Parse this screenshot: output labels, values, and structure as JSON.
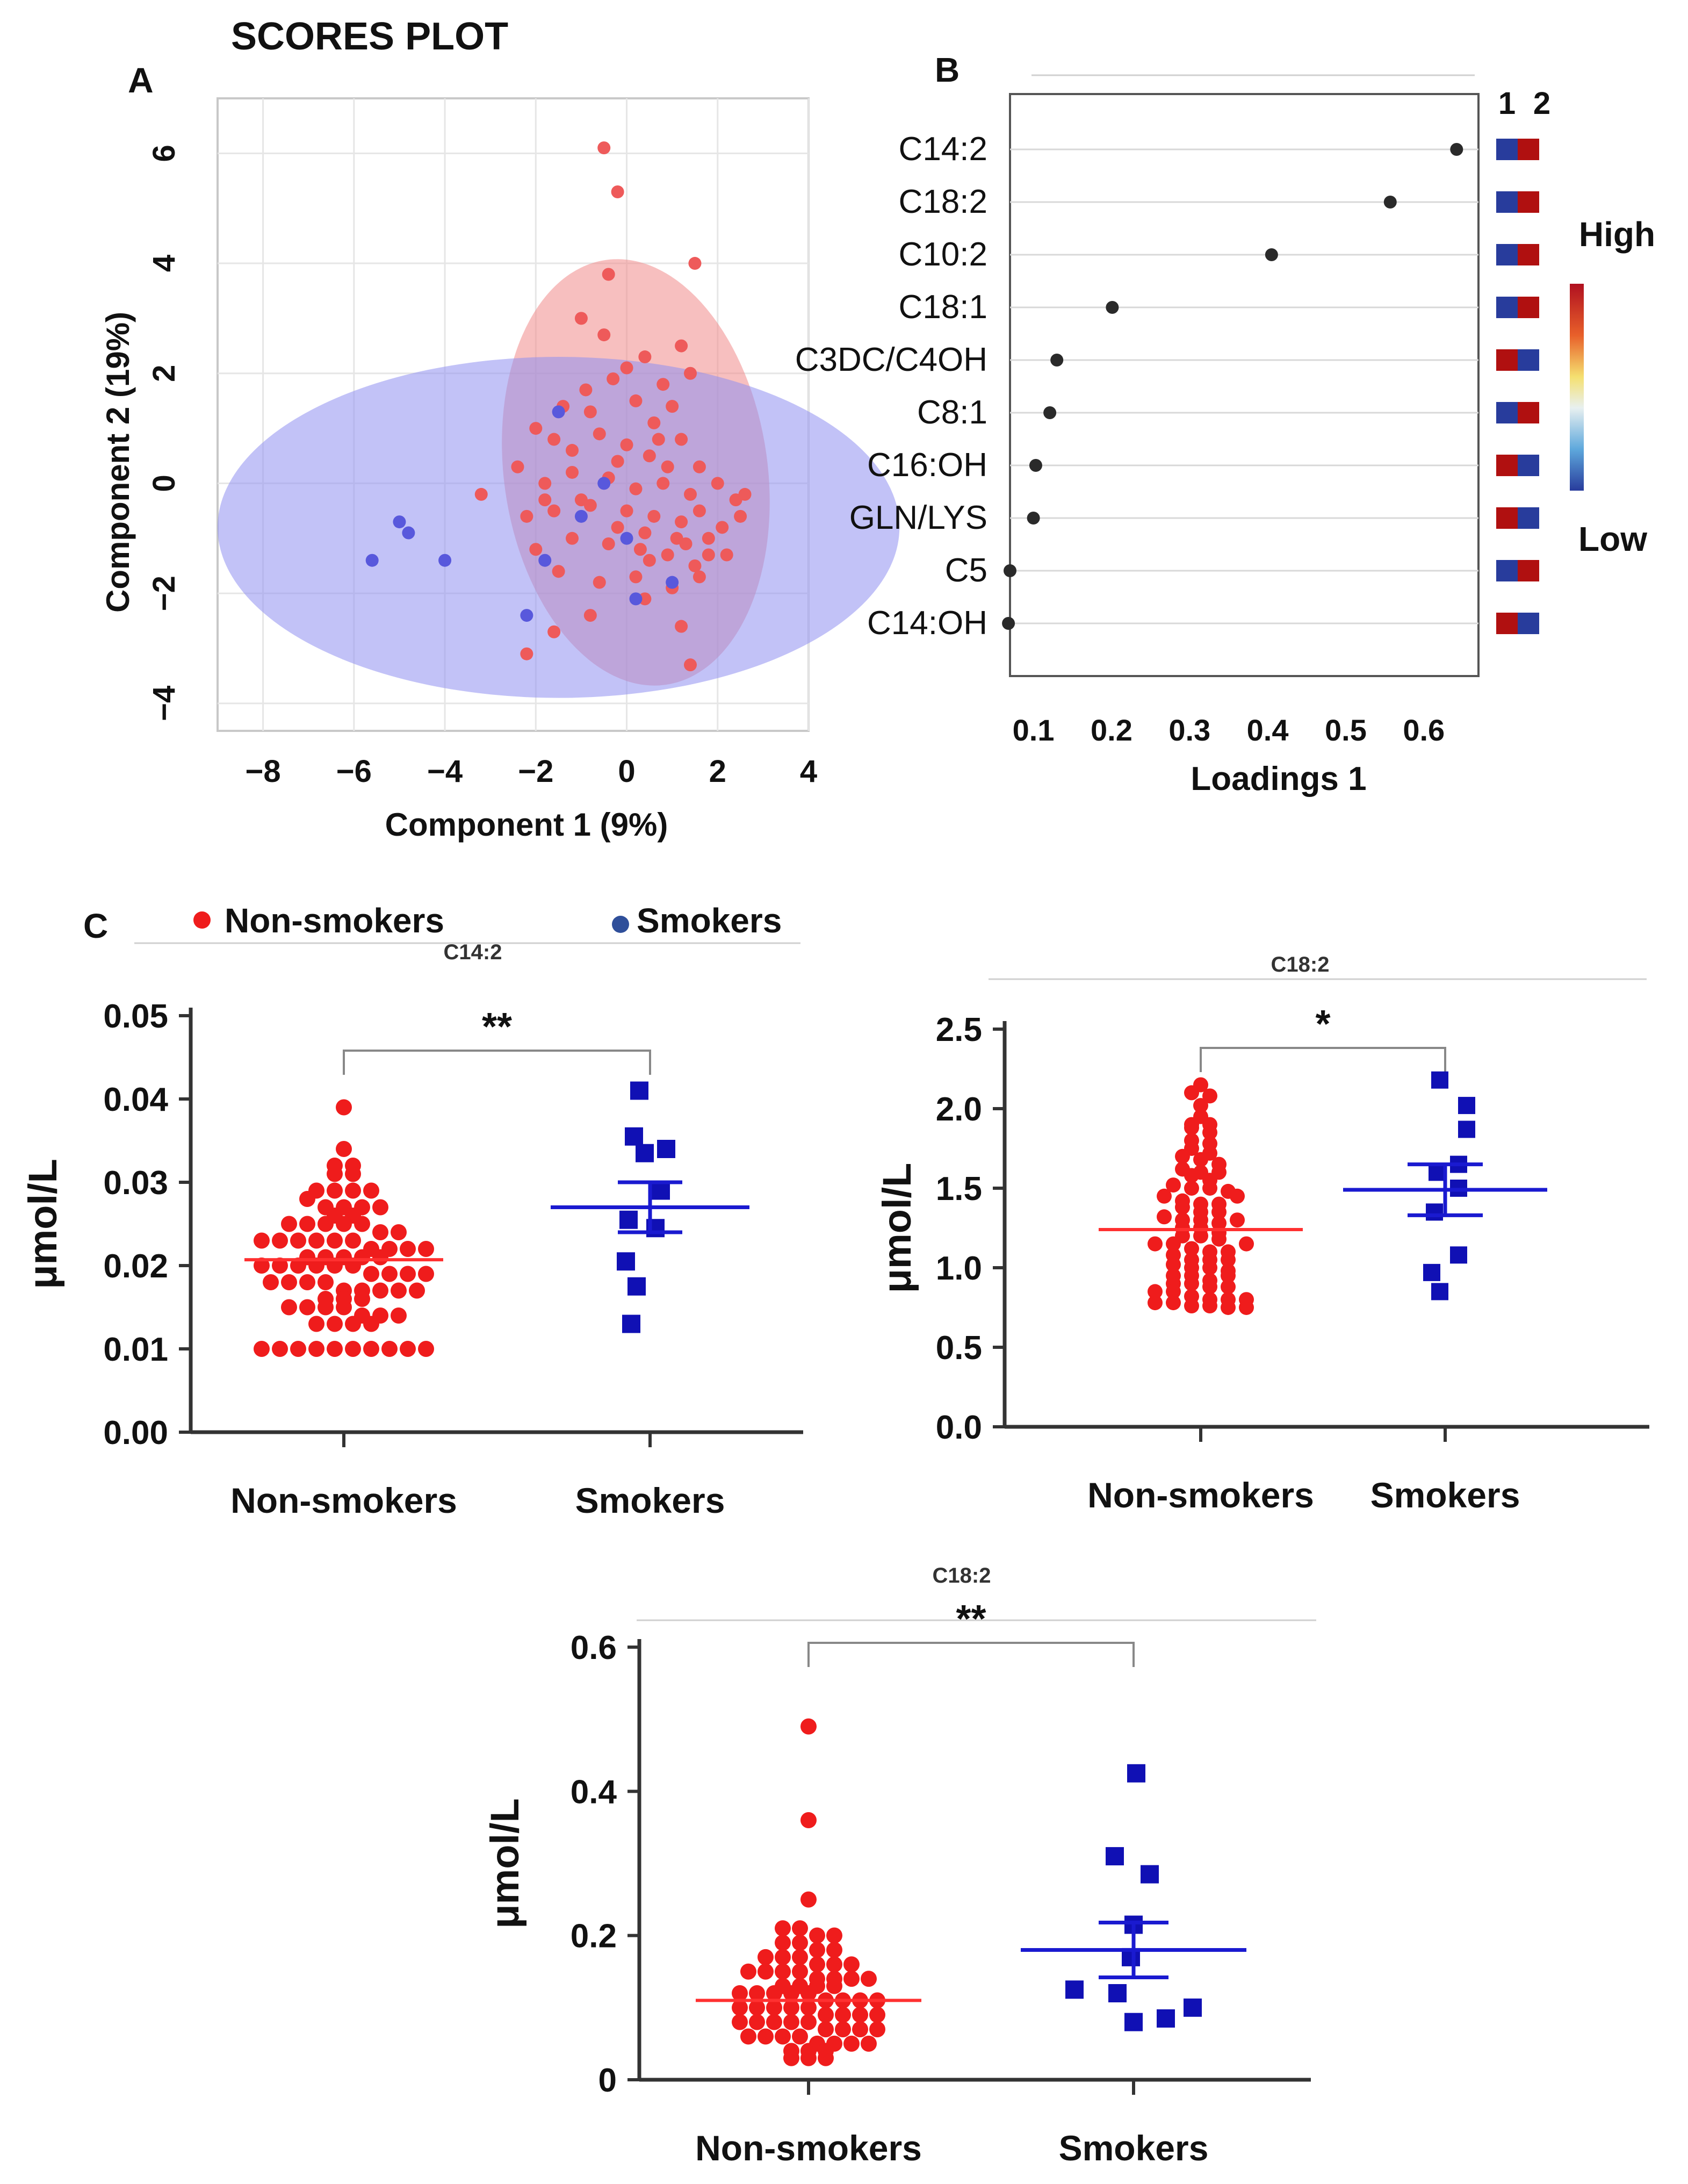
{
  "panel_labels": {
    "a": "A",
    "b": "B",
    "c": "C"
  },
  "colors": {
    "nonsmoker": "#ef1c1c",
    "smoker": "#1010b4",
    "nonsmoker_light": "#ee5a5a",
    "smoker_light": "#5858dc",
    "ellipse_red": "#f08a8a",
    "ellipse_blue": "#9090f0",
    "mean_red": "#ff3030",
    "mean_blue": "#1a1ad0"
  },
  "legend": {
    "nonsmoker": "Non-smokers",
    "smoker": "Smokers"
  },
  "chart_data": [
    {
      "id": "scores",
      "type": "scatter",
      "title": "SCORES PLOT",
      "xlabel": "Component 1 (9%)",
      "ylabel": "Component 2 (19%)",
      "xlim": [
        -9,
        4
      ],
      "ylim": [
        -4.5,
        7
      ],
      "xticks": [
        -8,
        -6,
        -4,
        -2,
        0,
        2,
        4
      ],
      "yticks": [
        -4,
        -2,
        0,
        2,
        4,
        6
      ],
      "xtick_labels": [
        "−8",
        "−6",
        "−4",
        "−2",
        "0",
        "2",
        "4"
      ],
      "ytick_labels": [
        "−4",
        "−2",
        "0",
        "2",
        "4",
        "6"
      ],
      "grid": true,
      "ellipses": [
        {
          "group": "Non-smokers",
          "cx": 0.2,
          "cy": 0.2,
          "rx": 2.9,
          "ry": 3.9,
          "angle": -8
        },
        {
          "group": "Smokers",
          "cx": -1.5,
          "cy": -0.8,
          "rx": 7.5,
          "ry": 3.1,
          "angle": 0
        }
      ],
      "series": [
        {
          "name": "Non-smokers",
          "points": [
            [
              -0.5,
              6.1
            ],
            [
              -0.2,
              5.3
            ],
            [
              1.5,
              4.0
            ],
            [
              -0.4,
              3.8
            ],
            [
              -1.0,
              3.0
            ],
            [
              -0.5,
              2.7
            ],
            [
              1.2,
              2.5
            ],
            [
              0.0,
              2.1
            ],
            [
              0.4,
              2.3
            ],
            [
              -0.3,
              1.9
            ],
            [
              0.8,
              1.8
            ],
            [
              1.4,
              2.0
            ],
            [
              -1.4,
              1.4
            ],
            [
              -0.8,
              1.3
            ],
            [
              0.2,
              1.5
            ],
            [
              0.6,
              1.1
            ],
            [
              1.0,
              1.4
            ],
            [
              -2.0,
              1.0
            ],
            [
              -1.6,
              0.8
            ],
            [
              -1.2,
              0.6
            ],
            [
              -0.6,
              0.9
            ],
            [
              0.0,
              0.7
            ],
            [
              0.5,
              0.5
            ],
            [
              1.2,
              0.8
            ],
            [
              1.6,
              0.3
            ],
            [
              2.0,
              0.0
            ],
            [
              2.4,
              -0.3
            ],
            [
              2.5,
              -0.6
            ],
            [
              -2.4,
              0.3
            ],
            [
              -1.8,
              0.0
            ],
            [
              -1.2,
              0.2
            ],
            [
              -0.4,
              0.1
            ],
            [
              0.2,
              -0.1
            ],
            [
              0.8,
              0.0
            ],
            [
              1.4,
              -0.2
            ],
            [
              -3.2,
              -0.2
            ],
            [
              -2.2,
              -0.6
            ],
            [
              -1.6,
              -0.5
            ],
            [
              -0.8,
              -0.4
            ],
            [
              0.0,
              -0.5
            ],
            [
              0.6,
              -0.6
            ],
            [
              1.2,
              -0.7
            ],
            [
              1.8,
              -1.0
            ],
            [
              2.2,
              -1.3
            ],
            [
              -2.0,
              -1.2
            ],
            [
              -1.2,
              -1.0
            ],
            [
              -0.4,
              -1.1
            ],
            [
              0.3,
              -1.2
            ],
            [
              0.9,
              -1.3
            ],
            [
              1.5,
              -1.5
            ],
            [
              -1.5,
              -1.6
            ],
            [
              -0.6,
              -1.8
            ],
            [
              0.2,
              -1.7
            ],
            [
              1.0,
              -1.9
            ],
            [
              1.6,
              -1.7
            ],
            [
              -2.2,
              -3.1
            ],
            [
              -1.6,
              -2.7
            ],
            [
              -0.8,
              -2.4
            ],
            [
              0.4,
              -2.1
            ],
            [
              1.2,
              -2.6
            ],
            [
              1.4,
              -3.3
            ],
            [
              -0.2,
              0.4
            ],
            [
              0.9,
              0.3
            ],
            [
              1.6,
              -0.5
            ],
            [
              2.1,
              -0.8
            ],
            [
              -1.0,
              -0.3
            ],
            [
              -0.2,
              -0.8
            ],
            [
              0.4,
              -0.9
            ],
            [
              1.1,
              -1.0
            ],
            [
              1.8,
              -1.3
            ],
            [
              2.6,
              -0.2
            ],
            [
              -1.8,
              -0.3
            ],
            [
              0.5,
              -1.4
            ],
            [
              1.3,
              -1.1
            ],
            [
              -0.9,
              1.7
            ],
            [
              0.7,
              0.8
            ]
          ]
        },
        {
          "name": "Smokers",
          "points": [
            [
              -5.6,
              -1.4
            ],
            [
              -5.0,
              -0.7
            ],
            [
              -4.8,
              -0.9
            ],
            [
              -4.0,
              -1.4
            ],
            [
              -2.2,
              -2.4
            ],
            [
              -1.8,
              -1.4
            ],
            [
              -1.5,
              1.3
            ],
            [
              -1.0,
              -0.6
            ],
            [
              -0.5,
              0.0
            ],
            [
              0.2,
              -2.1
            ],
            [
              1.0,
              -1.8
            ],
            [
              0.0,
              -1.0
            ]
          ]
        }
      ]
    },
    {
      "id": "loadings",
      "type": "scatter",
      "xlabel": "Loadings 1",
      "xlim": [
        0.07,
        0.67
      ],
      "xticks": [
        0.1,
        0.2,
        0.3,
        0.4,
        0.5,
        0.6
      ],
      "xtick_labels": [
        "0.1",
        "0.2",
        "0.3",
        "0.4",
        "0.5",
        "0.6"
      ],
      "categories": [
        "C14:2",
        "C18:2",
        "C10:2",
        "C18:1",
        "C3DC/C4OH",
        "C8:1",
        "C16:OH",
        "GLN/LYS",
        "C5",
        "C14:OH"
      ],
      "values": [
        0.642,
        0.557,
        0.405,
        0.201,
        0.13,
        0.121,
        0.103,
        0.1,
        0.07,
        0.068
      ],
      "heatmap_columns": [
        "1",
        "2"
      ],
      "heatmap": [
        [
          "Low",
          "High"
        ],
        [
          "Low",
          "High"
        ],
        [
          "Low",
          "High"
        ],
        [
          "Low",
          "High"
        ],
        [
          "High",
          "Low"
        ],
        [
          "Low",
          "High"
        ],
        [
          "High",
          "Low"
        ],
        [
          "High",
          "Low"
        ],
        [
          "Low",
          "High"
        ],
        [
          "High",
          "Low"
        ]
      ],
      "colorbar": {
        "high_label": "High",
        "low_label": "Low",
        "high_color": "#b01010",
        "low_color": "#283c9c"
      }
    },
    {
      "id": "c14_2",
      "type": "scatter",
      "title": "C14:2",
      "ylabel": "μmol/L",
      "ylim": [
        0,
        0.05
      ],
      "yticks": [
        0.0,
        0.01,
        0.02,
        0.03,
        0.04,
        0.05
      ],
      "ytick_labels": [
        "0.00",
        "0.01",
        "0.02",
        "0.03",
        "0.04",
        "0.05"
      ],
      "categories": [
        "Non-smokers",
        "Smokers"
      ],
      "significance": "**",
      "series": [
        {
          "name": "Non-smokers",
          "mean": 0.0207,
          "sem": 0.0,
          "values": [
            0.039,
            0.034,
            0.032,
            0.032,
            0.031,
            0.031,
            0.029,
            0.029,
            0.029,
            0.029,
            0.028,
            0.027,
            0.027,
            0.027,
            0.027,
            0.026,
            0.026,
            0.025,
            0.025,
            0.025,
            0.025,
            0.025,
            0.024,
            0.024,
            0.023,
            0.023,
            0.023,
            0.023,
            0.023,
            0.023,
            0.022,
            0.022,
            0.022,
            0.022,
            0.021,
            0.021,
            0.021,
            0.021,
            0.021,
            0.02,
            0.02,
            0.02,
            0.02,
            0.02,
            0.02,
            0.019,
            0.019,
            0.019,
            0.019,
            0.018,
            0.018,
            0.018,
            0.018,
            0.017,
            0.017,
            0.017,
            0.017,
            0.017,
            0.016,
            0.016,
            0.016,
            0.015,
            0.015,
            0.015,
            0.015,
            0.014,
            0.014,
            0.014,
            0.013,
            0.013,
            0.013,
            0.013,
            0.01,
            0.01,
            0.01,
            0.01,
            0.01,
            0.01,
            0.01,
            0.01,
            0.01,
            0.01
          ]
        },
        {
          "name": "Smokers",
          "mean": 0.027,
          "sem": 0.003,
          "values": [
            0.041,
            0.0355,
            0.034,
            0.0335,
            0.029,
            0.0255,
            0.0245,
            0.0205,
            0.0175,
            0.013
          ]
        }
      ]
    },
    {
      "id": "c18_2",
      "type": "scatter",
      "title": "C18:2",
      "ylabel": "μmol/L",
      "ylim": [
        0,
        2.5
      ],
      "yticks": [
        0.0,
        0.5,
        1.0,
        1.5,
        2.0,
        2.5
      ],
      "ytick_labels": [
        "0.0",
        "0.5",
        "1.0",
        "1.5",
        "2.0",
        "2.5"
      ],
      "categories": [
        "Non-smokers",
        "Smokers"
      ],
      "significance": "*",
      "series": [
        {
          "name": "Non-smokers",
          "mean": 1.24,
          "sem": 0.0,
          "values": [
            2.15,
            2.1,
            2.08,
            2.02,
            1.95,
            1.9,
            1.9,
            1.88,
            1.85,
            1.8,
            1.78,
            1.75,
            1.72,
            1.7,
            1.68,
            1.65,
            1.62,
            1.6,
            1.58,
            1.55,
            1.52,
            1.5,
            1.5,
            1.48,
            1.45,
            1.42,
            1.4,
            1.4,
            1.38,
            1.35,
            1.32,
            1.3,
            1.3,
            1.28,
            1.25,
            1.25,
            1.22,
            1.2,
            1.2,
            1.18,
            1.15,
            1.15,
            1.12,
            1.1,
            1.1,
            1.08,
            1.05,
            1.05,
            1.02,
            1.0,
            1.0,
            0.98,
            0.95,
            0.95,
            0.92,
            0.9,
            0.9,
            0.88,
            0.85,
            0.85,
            0.82,
            0.8,
            0.8,
            0.8,
            0.78,
            0.78,
            0.76,
            0.76,
            0.75,
            0.75,
            1.6,
            1.45,
            1.35,
            1.3,
            1.15,
            1.05,
            0.95,
            0.88
          ]
        },
        {
          "name": "Smokers",
          "mean": 1.49,
          "sem": 0.16,
          "values": [
            2.18,
            2.02,
            1.87,
            1.65,
            1.6,
            1.5,
            1.35,
            1.08,
            0.97,
            0.85
          ]
        }
      ]
    },
    {
      "id": "c18_2_b",
      "type": "scatter",
      "title": "C18:2",
      "ylabel": "μmol/L",
      "ylim": [
        0,
        0.6
      ],
      "yticks": [
        0,
        0.2,
        0.4,
        0.6
      ],
      "ytick_labels": [
        "0",
        "0.2",
        "0.4",
        "0.6"
      ],
      "categories": [
        "Non-smokers",
        "Smokers"
      ],
      "significance": "**",
      "series": [
        {
          "name": "Non-smokers",
          "mean": 0.11,
          "sem": 0.0,
          "values": [
            0.49,
            0.36,
            0.25,
            0.21,
            0.21,
            0.2,
            0.2,
            0.19,
            0.19,
            0.18,
            0.18,
            0.17,
            0.17,
            0.17,
            0.16,
            0.16,
            0.16,
            0.15,
            0.15,
            0.15,
            0.15,
            0.14,
            0.14,
            0.14,
            0.14,
            0.13,
            0.13,
            0.13,
            0.13,
            0.12,
            0.12,
            0.12,
            0.12,
            0.12,
            0.11,
            0.11,
            0.11,
            0.11,
            0.1,
            0.1,
            0.1,
            0.1,
            0.1,
            0.09,
            0.09,
            0.09,
            0.09,
            0.08,
            0.08,
            0.08,
            0.08,
            0.08,
            0.07,
            0.07,
            0.07,
            0.07,
            0.06,
            0.06,
            0.06,
            0.06,
            0.05,
            0.05,
            0.05,
            0.05,
            0.04,
            0.04,
            0.04,
            0.03,
            0.03,
            0.03
          ]
        },
        {
          "name": "Smokers",
          "mean": 0.18,
          "sem": 0.038,
          "values": [
            0.425,
            0.31,
            0.285,
            0.215,
            0.17,
            0.125,
            0.12,
            0.1,
            0.085,
            0.08
          ]
        }
      ]
    }
  ]
}
